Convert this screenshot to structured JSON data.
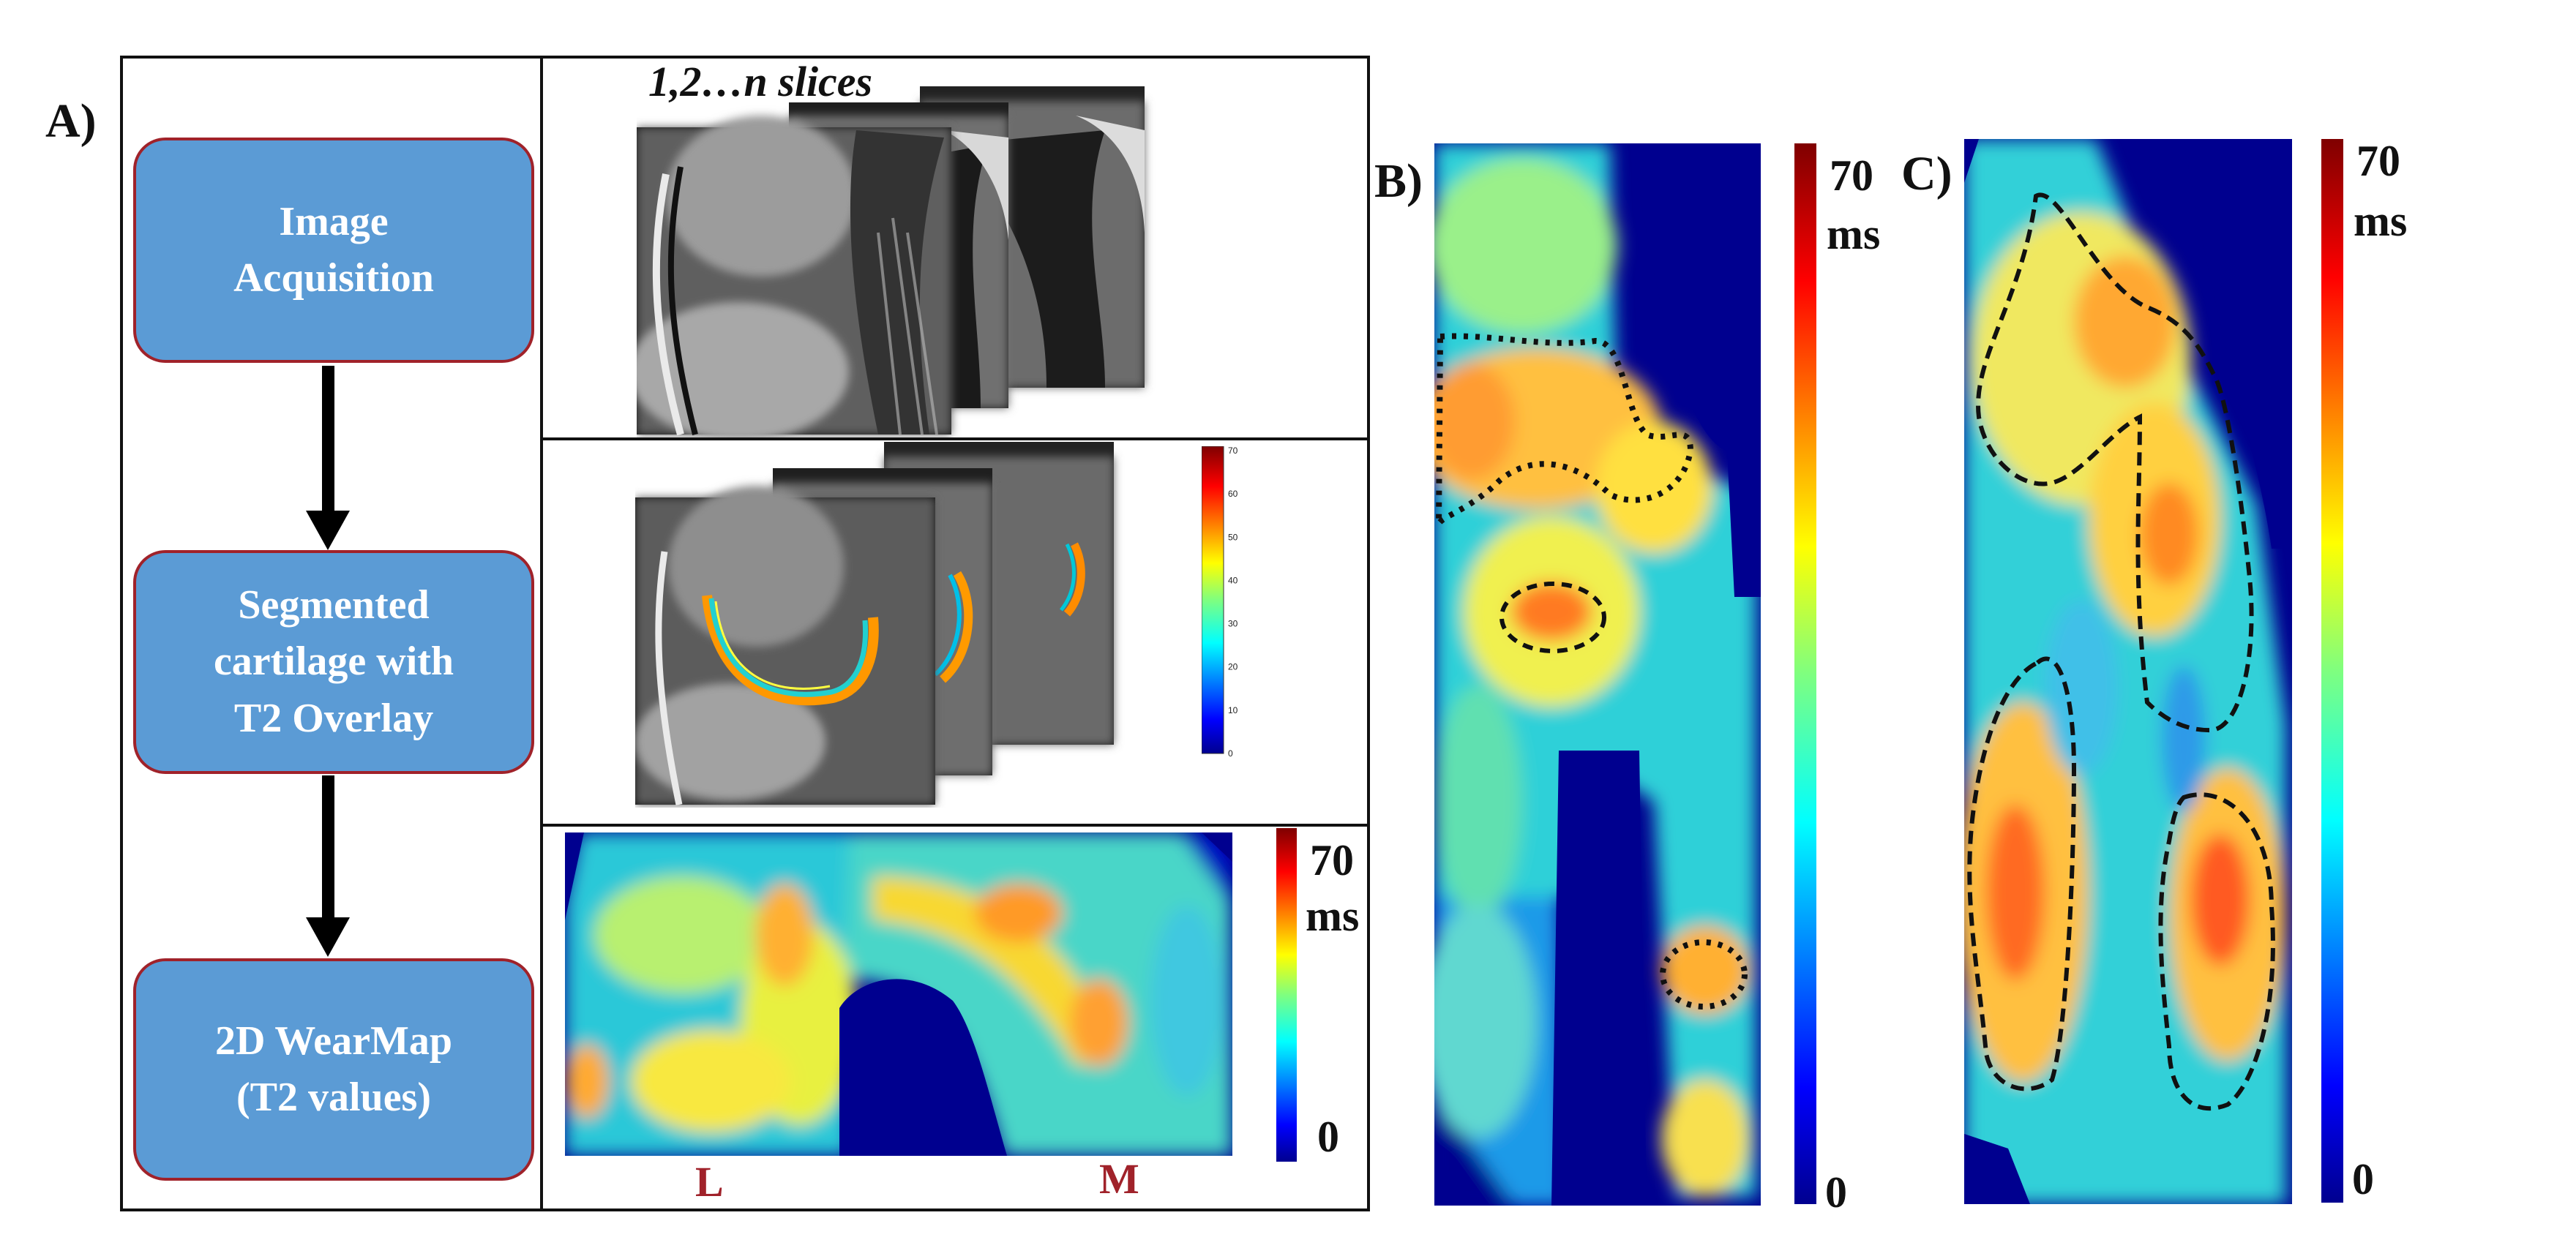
{
  "panel_labels": {
    "a": "A)",
    "b": "B)",
    "c": "C)"
  },
  "workflow": {
    "steps": [
      {
        "id": "acquisition",
        "lines": [
          "Image",
          "Acquisition"
        ]
      },
      {
        "id": "segmentation",
        "lines": [
          "Segmented",
          "cartilage with",
          "T2 Overlay"
        ]
      },
      {
        "id": "wearmap",
        "lines": [
          "2D WearMap",
          "(T2 values)"
        ]
      }
    ],
    "slices_caption": "1,2…n slices"
  },
  "overlay_colorbar": {
    "ticks": [
      "70",
      "60",
      "50",
      "40",
      "30",
      "20",
      "10",
      "0"
    ]
  },
  "wearmap_panel": {
    "colorbar_max": "70",
    "colorbar_unit": "ms",
    "colorbar_min": "0",
    "left_side_label": "L",
    "right_side_label": "M"
  },
  "panel_b": {
    "colorbar_max": "70",
    "colorbar_unit": "ms",
    "colorbar_min": "0"
  },
  "panel_c": {
    "colorbar_max": "70",
    "colorbar_unit": "ms",
    "colorbar_min": "0"
  },
  "colors": {
    "box_fill": "#5b9bd5",
    "box_border": "#a0222a",
    "side_label": "#a0222a",
    "map_background": "#00008f",
    "jet": [
      "#00008f",
      "#0000ff",
      "#007fff",
      "#00ffff",
      "#7fff7f",
      "#ffff00",
      "#ff7f00",
      "#ff0000",
      "#7f0000"
    ]
  }
}
